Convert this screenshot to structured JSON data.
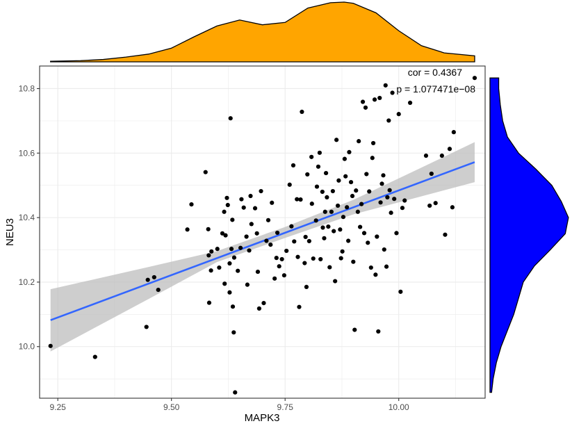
{
  "chart_data": {
    "type": "scatter",
    "xlabel": "MAPK3",
    "ylabel": "NEU3",
    "xlim": [
      9.21,
      10.19
    ],
    "ylim": [
      9.84,
      10.87
    ],
    "xticks": [
      9.25,
      9.5,
      9.75,
      10.0
    ],
    "yticks": [
      10.0,
      10.2,
      10.4,
      10.6,
      10.8
    ],
    "xtick_labels": [
      "9.25",
      "9.50",
      "9.75",
      "10.00"
    ],
    "ytick_labels": [
      "10.0",
      "10.2",
      "10.4",
      "10.6",
      "10.8"
    ],
    "grid": true,
    "annotations": {
      "cor": "cor = 0.4367",
      "p": "p = 1.077471e−08"
    },
    "colors": {
      "points": "#000000",
      "fit_line": "#3366ff",
      "ci_band": "#bebebe",
      "top_density": "#ffa500",
      "right_density": "#0000ff"
    },
    "fit": {
      "x": [
        9.234,
        10.167
      ],
      "y": [
        10.082,
        10.572
      ],
      "ci": [
        {
          "x": 9.234,
          "lo": 9.985,
          "hi": 10.178
        },
        {
          "x": 9.45,
          "lo": 10.148,
          "hi": 10.247
        },
        {
          "x": 9.6,
          "lo": 10.262,
          "hi": 10.296
        },
        {
          "x": 9.75,
          "lo": 10.337,
          "hi": 10.371
        },
        {
          "x": 9.9,
          "lo": 10.41,
          "hi": 10.455
        },
        {
          "x": 10.05,
          "lo": 10.466,
          "hi": 10.555
        },
        {
          "x": 10.167,
          "lo": 10.51,
          "hi": 10.634
        }
      ]
    },
    "points": [
      [
        9.234,
        10.002
      ],
      [
        9.332,
        9.968
      ],
      [
        9.445,
        10.061
      ],
      [
        9.448,
        10.207
      ],
      [
        9.462,
        10.215
      ],
      [
        9.471,
        10.176
      ],
      [
        9.535,
        10.363
      ],
      [
        9.544,
        10.441
      ],
      [
        9.575,
        10.541
      ],
      [
        9.581,
        10.364
      ],
      [
        9.582,
        10.283
      ],
      [
        9.583,
        10.136
      ],
      [
        9.587,
        10.236
      ],
      [
        9.588,
        10.295
      ],
      [
        9.601,
        10.303
      ],
      [
        9.605,
        10.245
      ],
      [
        9.612,
        10.351
      ],
      [
        9.616,
        10.418
      ],
      [
        9.617,
        10.195
      ],
      [
        9.619,
        10.345
      ],
      [
        9.622,
        10.461
      ],
      [
        9.624,
        10.439
      ],
      [
        9.628,
        10.258
      ],
      [
        9.628,
        10.168
      ],
      [
        9.63,
        10.708
      ],
      [
        9.632,
        10.303
      ],
      [
        9.634,
        10.393
      ],
      [
        9.635,
        10.124
      ],
      [
        9.637,
        10.044
      ],
      [
        9.638,
        10.276
      ],
      [
        9.64,
        9.858
      ],
      [
        9.646,
        10.235
      ],
      [
        9.652,
        10.306
      ],
      [
        9.654,
        10.457
      ],
      [
        9.659,
        10.431
      ],
      [
        9.665,
        10.341
      ],
      [
        9.667,
        10.192
      ],
      [
        9.671,
        10.298
      ],
      [
        9.674,
        10.467
      ],
      [
        9.676,
        10.38
      ],
      [
        9.684,
        10.429
      ],
      [
        9.688,
        10.351
      ],
      [
        9.69,
        10.232
      ],
      [
        9.693,
        10.118
      ],
      [
        9.697,
        10.482
      ],
      [
        9.703,
        10.135
      ],
      [
        9.709,
        10.328
      ],
      [
        9.713,
        10.392
      ],
      [
        9.718,
        10.316
      ],
      [
        9.721,
        10.446
      ],
      [
        9.727,
        10.211
      ],
      [
        9.731,
        10.275
      ],
      [
        9.733,
        10.353
      ],
      [
        9.737,
        10.249
      ],
      [
        9.743,
        10.271
      ],
      [
        9.748,
        10.221
      ],
      [
        9.753,
        10.297
      ],
      [
        9.76,
        10.502
      ],
      [
        9.764,
        10.373
      ],
      [
        9.768,
        10.562
      ],
      [
        9.77,
        10.326
      ],
      [
        9.776,
        10.457
      ],
      [
        9.778,
        10.278
      ],
      [
        9.781,
        10.123
      ],
      [
        9.784,
        10.456
      ],
      [
        9.787,
        10.728
      ],
      [
        9.793,
        10.259
      ],
      [
        9.795,
        10.34
      ],
      [
        9.797,
        10.185
      ],
      [
        9.799,
        10.534
      ],
      [
        9.803,
        10.327
      ],
      [
        9.808,
        10.588
      ],
      [
        9.809,
        10.443
      ],
      [
        9.812,
        10.273
      ],
      [
        9.818,
        10.391
      ],
      [
        9.82,
        10.496
      ],
      [
        9.823,
        10.558
      ],
      [
        9.826,
        10.601
      ],
      [
        9.828,
        10.271
      ],
      [
        9.832,
        10.48
      ],
      [
        9.833,
        10.369
      ],
      [
        9.836,
        10.336
      ],
      [
        9.838,
        10.418
      ],
      [
        9.84,
        10.538
      ],
      [
        9.842,
        10.463
      ],
      [
        9.845,
        10.372
      ],
      [
        9.848,
        10.246
      ],
      [
        9.852,
        10.418
      ],
      [
        9.855,
        10.482
      ],
      [
        9.857,
        10.358
      ],
      [
        9.86,
        10.203
      ],
      [
        9.863,
        10.641
      ],
      [
        9.866,
        10.437
      ],
      [
        9.868,
        10.515
      ],
      [
        9.871,
        10.363
      ],
      [
        9.873,
        10.274
      ],
      [
        9.876,
        10.295
      ],
      [
        9.878,
        10.402
      ],
      [
        9.881,
        10.582
      ],
      [
        9.883,
        10.528
      ],
      [
        9.886,
        10.432
      ],
      [
        9.889,
        10.328
      ],
      [
        9.891,
        10.603
      ],
      [
        9.895,
        10.51
      ],
      [
        9.898,
        10.467
      ],
      [
        9.9,
        10.263
      ],
      [
        9.903,
        10.052
      ],
      [
        9.906,
        10.484
      ],
      [
        9.91,
        10.418
      ],
      [
        9.912,
        10.637
      ],
      [
        9.915,
        10.371
      ],
      [
        9.918,
        10.442
      ],
      [
        9.921,
        10.759
      ],
      [
        9.924,
        10.352
      ],
      [
        9.927,
        10.741
      ],
      [
        9.929,
        10.535
      ],
      [
        9.932,
        10.322
      ],
      [
        9.935,
        10.481
      ],
      [
        9.939,
        10.245
      ],
      [
        9.942,
        10.585
      ],
      [
        9.944,
        10.631
      ],
      [
        9.947,
        10.766
      ],
      [
        9.949,
        10.223
      ],
      [
        9.952,
        10.341
      ],
      [
        9.955,
        10.047
      ],
      [
        9.958,
        10.771
      ],
      [
        9.96,
        10.447
      ],
      [
        9.963,
        10.505
      ],
      [
        9.966,
        10.531
      ],
      [
        9.968,
        10.301
      ],
      [
        9.971,
        10.81
      ],
      [
        9.973,
        10.248
      ],
      [
        9.975,
        10.463
      ],
      [
        9.978,
        10.701
      ],
      [
        9.98,
        10.485
      ],
      [
        9.983,
        10.415
      ],
      [
        9.986,
        10.787
      ],
      [
        9.99,
        10.458
      ],
      [
        9.995,
        10.352
      ],
      [
        10.0,
        10.721
      ],
      [
        10.004,
        10.17
      ],
      [
        10.008,
        10.43
      ],
      [
        10.013,
        10.453
      ],
      [
        10.025,
        10.756
      ],
      [
        10.06,
        10.592
      ],
      [
        10.068,
        10.437
      ],
      [
        10.072,
        10.536
      ],
      [
        10.081,
        10.445
      ],
      [
        10.095,
        10.592
      ],
      [
        10.102,
        10.347
      ],
      [
        10.112,
        10.613
      ],
      [
        10.118,
        10.432
      ],
      [
        10.121,
        10.665
      ],
      [
        10.167,
        10.833
      ]
    ],
    "x_density": {
      "x": [
        9.234,
        9.3,
        9.35,
        9.4,
        9.45,
        9.5,
        9.55,
        9.6,
        9.65,
        9.7,
        9.75,
        9.8,
        9.85,
        9.88,
        9.9,
        9.95,
        10.0,
        10.05,
        10.1,
        10.167
      ],
      "density": [
        0.01,
        0.02,
        0.04,
        0.08,
        0.13,
        0.23,
        0.42,
        0.6,
        0.7,
        0.62,
        0.66,
        0.9,
        0.99,
        1.0,
        0.98,
        0.82,
        0.52,
        0.27,
        0.15,
        0.1
      ]
    },
    "y_density": {
      "y": [
        9.858,
        9.9,
        9.95,
        10.0,
        10.05,
        10.1,
        10.15,
        10.2,
        10.25,
        10.3,
        10.35,
        10.4,
        10.45,
        10.5,
        10.55,
        10.6,
        10.65,
        10.7,
        10.75,
        10.8,
        10.833
      ],
      "density": [
        0.02,
        0.04,
        0.08,
        0.14,
        0.22,
        0.3,
        0.36,
        0.42,
        0.56,
        0.76,
        0.95,
        0.99,
        0.9,
        0.78,
        0.58,
        0.36,
        0.22,
        0.16,
        0.13,
        0.11,
        0.11
      ]
    }
  }
}
